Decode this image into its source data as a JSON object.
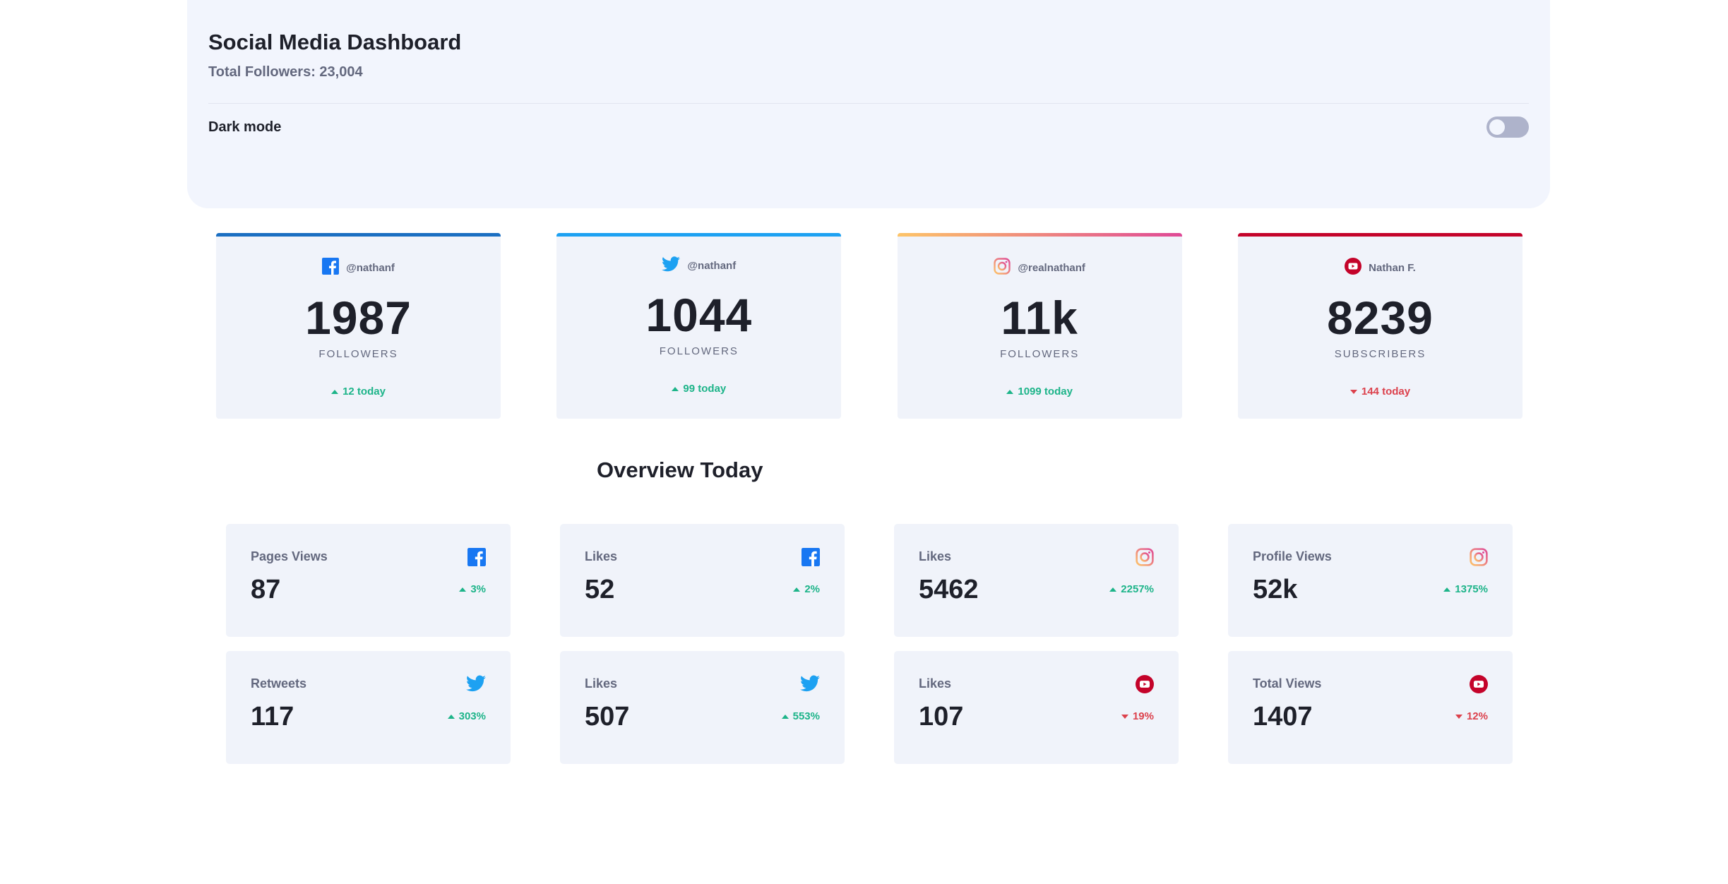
{
  "header": {
    "title": "Social Media Dashboard",
    "subtitle": "Total Followers: 23,004",
    "dark_mode_label": "Dark mode",
    "dark_mode_on": false
  },
  "colors": {
    "facebook": "#1877f2",
    "twitter": "#1da1f2",
    "instagram_start": "#fdc468",
    "instagram_end": "#df4996",
    "youtube": "#c4032a",
    "up": "#1db489",
    "down": "#dc414c"
  },
  "cards": [
    {
      "network": "facebook",
      "icon": "facebook-icon",
      "handle": "@nathanf",
      "count": "1987",
      "unit": "FOLLOWERS",
      "delta": "12 today",
      "trend": "up"
    },
    {
      "network": "twitter",
      "icon": "twitter-icon",
      "handle": "@nathanf",
      "count": "1044",
      "unit": "FOLLOWERS",
      "delta": "99 today",
      "trend": "up"
    },
    {
      "network": "instagram",
      "icon": "instagram-icon",
      "handle": "@realnathanf",
      "count": "11k",
      "unit": "FOLLOWERS",
      "delta": "1099 today",
      "trend": "up"
    },
    {
      "network": "youtube",
      "icon": "youtube-icon",
      "handle": "Nathan F.",
      "count": "8239",
      "unit": "SUBSCRIBERS",
      "delta": "144 today",
      "trend": "down"
    }
  ],
  "overview": {
    "title": "Overview Today",
    "tiles": [
      {
        "label": "Pages Views",
        "icon": "facebook-icon",
        "value": "87",
        "delta": "3%",
        "trend": "up"
      },
      {
        "label": "Likes",
        "icon": "facebook-icon",
        "value": "52",
        "delta": "2%",
        "trend": "up"
      },
      {
        "label": "Likes",
        "icon": "instagram-icon",
        "value": "5462",
        "delta": "2257%",
        "trend": "up"
      },
      {
        "label": "Profile Views",
        "icon": "instagram-icon",
        "value": "52k",
        "delta": "1375%",
        "trend": "up"
      },
      {
        "label": "Retweets",
        "icon": "twitter-icon",
        "value": "117",
        "delta": "303%",
        "trend": "up"
      },
      {
        "label": "Likes",
        "icon": "twitter-icon",
        "value": "507",
        "delta": "553%",
        "trend": "up"
      },
      {
        "label": "Likes",
        "icon": "youtube-icon",
        "value": "107",
        "delta": "19%",
        "trend": "down"
      },
      {
        "label": "Total Views",
        "icon": "youtube-icon",
        "value": "1407",
        "delta": "12%",
        "trend": "down"
      }
    ]
  }
}
